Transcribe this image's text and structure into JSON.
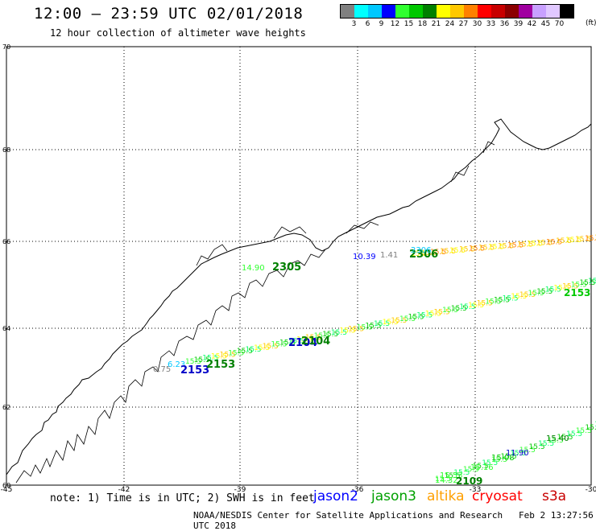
{
  "title": "12:00 – 23:59 UTC 02/01/2018",
  "subtitle": "12 hour collection of altimeter wave heights",
  "legend": {
    "unit": "(ft)",
    "labels": [
      "3",
      "6",
      "9",
      "12",
      "15",
      "18",
      "21",
      "24",
      "27",
      "30",
      "33",
      "36",
      "39",
      "42",
      "45",
      "70"
    ],
    "colors": [
      "#808080",
      "#00ffff",
      "#00c8ff",
      "#0000ff",
      "#30ff30",
      "#00c800",
      "#008000",
      "#ffff00",
      "#ffc800",
      "#ff8000",
      "#ff0000",
      "#c80000",
      "#8b0000",
      "#a000a0",
      "#c8a0ff",
      "#e0c8ff",
      "#000000"
    ]
  },
  "axes": {
    "lat_labels": [
      "70",
      "68",
      "66",
      "64",
      "62",
      "60"
    ],
    "lon_labels": [
      "-45",
      "-42",
      "-39",
      "-36",
      "-33",
      "-30"
    ]
  },
  "tracks": {
    "lower": [
      {
        "text": "0.75",
        "color": "#808080"
      },
      {
        "text": "6.23",
        "color": "#00c8ff"
      },
      {
        "text": "2153",
        "color": "#0000c8"
      },
      {
        "text": "2153",
        "color": "#008000"
      },
      {
        "text": "2104",
        "color": "#0000c8"
      },
      {
        "text": "2104",
        "color": "#008000"
      },
      {
        "text": "2153",
        "color": "#00c800"
      }
    ],
    "upper": [
      {
        "text": "14.90",
        "color": "#30ff30"
      },
      {
        "text": "2305",
        "color": "#008000"
      },
      {
        "text": "10.39",
        "color": "#0000ff"
      },
      {
        "text": "1.41",
        "color": "#808080"
      },
      {
        "text": "2306",
        "color": "#008000"
      },
      {
        "text": "2306",
        "color": "#00c8ff"
      }
    ],
    "south": [
      {
        "text": "14.32",
        "color": "#30ff30"
      },
      {
        "text": "15.53",
        "color": "#30ff30"
      },
      {
        "text": "15.16",
        "color": "#30ff30"
      },
      {
        "text": "15.08",
        "color": "#00c800"
      },
      {
        "text": "11.90",
        "color": "#0000c8"
      },
      {
        "text": "15.40",
        "color": "#008000"
      },
      {
        "text": "2109",
        "color": "#008000"
      }
    ]
  },
  "footer": {
    "note": "note: 1) Time is in UTC; 2) SWH is in feet",
    "satellites": [
      {
        "name": "jason2",
        "color": "#0000ff"
      },
      {
        "name": "jason3",
        "color": "#00a000"
      },
      {
        "name": "altika",
        "color": "#ffa000"
      },
      {
        "name": "cryosat",
        "color": "#ff0000"
      },
      {
        "name": "s3a",
        "color": "#c80000"
      }
    ],
    "credit": "NOAA/NESDIS Center for Satellite Applications and Research",
    "timestamp": "Feb  2 13:27:56 UTC 2018"
  }
}
